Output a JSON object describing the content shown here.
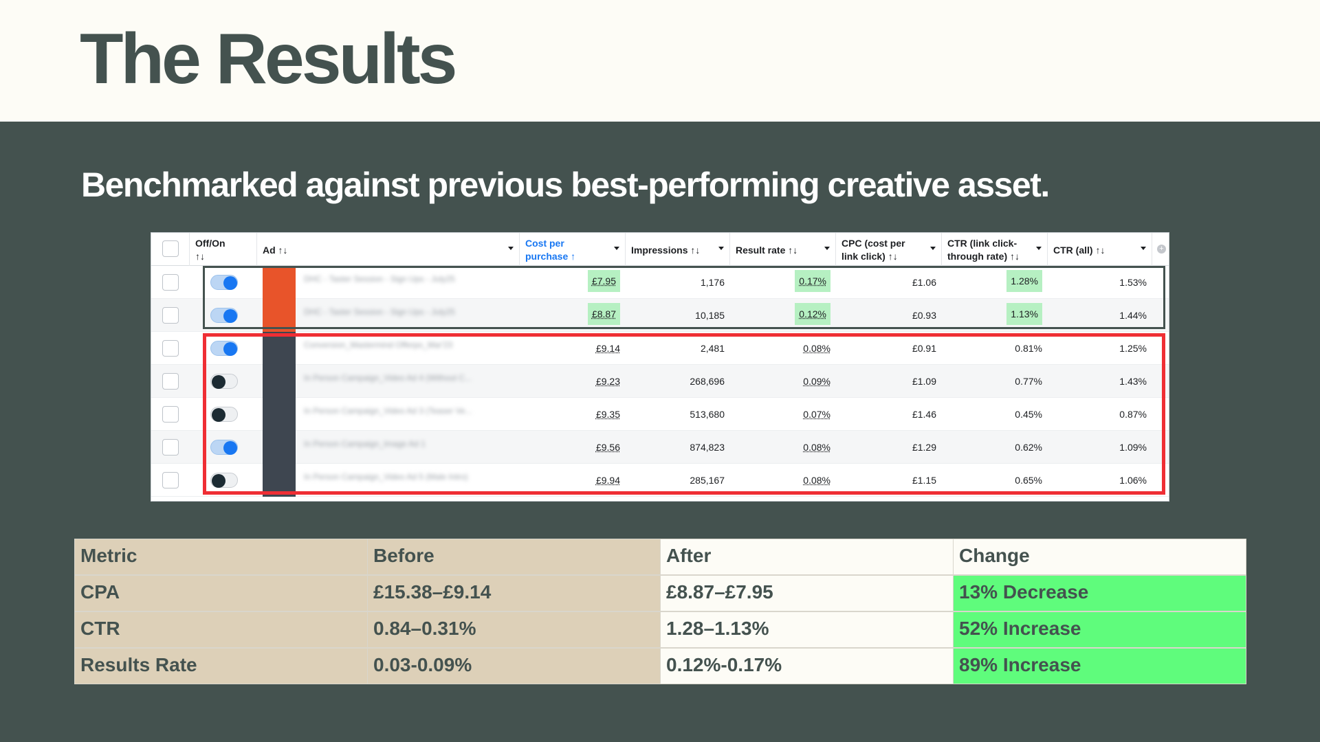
{
  "page": {
    "title": "The Results",
    "subtitle": "Benchmarked against previous best-performing creative asset."
  },
  "ads_table": {
    "headers": [
      {
        "line1": "Off/On",
        "line2": "↑↓"
      },
      {
        "line1": "Ad ↑↓",
        "line2": ""
      },
      {
        "line1": "Cost per",
        "line2": "purchase ↑"
      },
      {
        "line1": "Impressions ↑↓",
        "line2": ""
      },
      {
        "line1": "Result rate ↑↓",
        "line2": ""
      },
      {
        "line1": "CPC (cost per",
        "line2": "link click) ↑↓"
      },
      {
        "line1": "CTR (link click-",
        "line2": "through rate) ↑↓"
      },
      {
        "line1": "CTR (all) ↑↓",
        "line2": ""
      }
    ],
    "rows": [
      {
        "toggle": "on",
        "ad_name": "DHC - Taster Session - Sign Ups - July25",
        "cost_per_purchase": "£7.95",
        "impressions": "1,176",
        "result_rate": "0.17%",
        "cpc": "£1.06",
        "ctr_link": "1.28%",
        "ctr_all": "1.53%",
        "highlight": true,
        "alt": false
      },
      {
        "toggle": "on",
        "ad_name": "DHC - Taster Session - Sign Ups - July25",
        "cost_per_purchase": "£8.87",
        "impressions": "10,185",
        "result_rate": "0.12%",
        "cpc": "£0.93",
        "ctr_link": "1.13%",
        "ctr_all": "1.44%",
        "highlight": true,
        "alt": true
      },
      {
        "toggle": "on",
        "ad_name": "Conversion_Mastermind Offerpo_Mar'23",
        "cost_per_purchase": "£9.14",
        "impressions": "2,481",
        "result_rate": "0.08%",
        "cpc": "£0.91",
        "ctr_link": "0.81%",
        "ctr_all": "1.25%",
        "highlight": false,
        "alt": false
      },
      {
        "toggle": "off",
        "ad_name": "In Person Campaign_Video Ad 4 (Without C...",
        "cost_per_purchase": "£9.23",
        "impressions": "268,696",
        "result_rate": "0.09%",
        "cpc": "£1.09",
        "ctr_link": "0.77%",
        "ctr_all": "1.43%",
        "highlight": false,
        "alt": true
      },
      {
        "toggle": "off",
        "ad_name": "In Person Campaign_Video Ad 3 (Teaser Ve...",
        "cost_per_purchase": "£9.35",
        "impressions": "513,680",
        "result_rate": "0.07%",
        "cpc": "£1.46",
        "ctr_link": "0.45%",
        "ctr_all": "0.87%",
        "highlight": false,
        "alt": false
      },
      {
        "toggle": "on",
        "ad_name": "In Person Campaign_Image Ad 1",
        "cost_per_purchase": "£9.56",
        "impressions": "874,823",
        "result_rate": "0.08%",
        "cpc": "£1.29",
        "ctr_link": "0.62%",
        "ctr_all": "1.09%",
        "highlight": false,
        "alt": true
      },
      {
        "toggle": "off",
        "ad_name": "In Person Campaign_Video Ad 5 (Male Intro)",
        "cost_per_purchase": "£9.94",
        "impressions": "285,167",
        "result_rate": "0.08%",
        "cpc": "£1.15",
        "ctr_link": "0.65%",
        "ctr_all": "1.06%",
        "highlight": false,
        "alt": false
      }
    ]
  },
  "summary_table": {
    "headers": [
      "Metric",
      "Before",
      "After",
      "Change"
    ],
    "rows": [
      [
        "CPA",
        "£15.38–£9.14",
        "£8.87–£7.95",
        "13% Decrease"
      ],
      [
        "CTR",
        "0.84–0.31%",
        "1.28–1.13%",
        "52% Increase"
      ],
      [
        "Results Rate",
        "0.03-0.09%",
        "0.12%-0.17%",
        "89% Increase"
      ]
    ]
  },
  "colors": {
    "dark_bg": "#44524f",
    "light_bg": "#fdfcf6",
    "tan": "#ddd0b8",
    "green_change": "#5ffc7c",
    "highlight_green": "#b6f0c2",
    "toggle_blue": "#1877f2",
    "box_red": "#ef2e34"
  }
}
